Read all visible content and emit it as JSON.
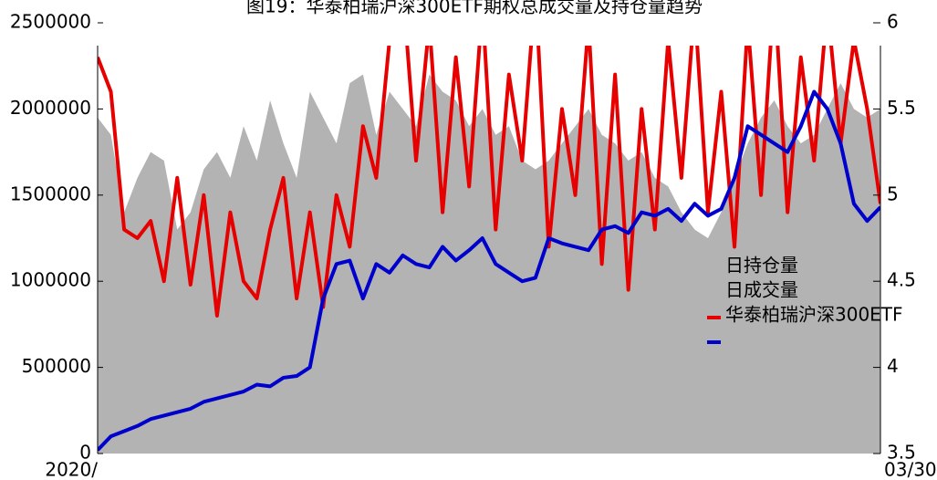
{
  "chart_data": {
    "type": "line",
    "title": "图19：华泰柏瑞沪深300ETF期权总成交量及持仓量趋势",
    "categories": [
      "2020/",
      null,
      null,
      null,
      null,
      null,
      null,
      null,
      null,
      null,
      null,
      null,
      null,
      null,
      null,
      null,
      null,
      null,
      null,
      null,
      null,
      null,
      null,
      null,
      null,
      null,
      null,
      null,
      null,
      null,
      null,
      null,
      null,
      null,
      null,
      null,
      null,
      null,
      null,
      null,
      null,
      null,
      null,
      null,
      null,
      null,
      null,
      null,
      null,
      null,
      null,
      null,
      null,
      null,
      null,
      null,
      null,
      null,
      null,
      "03/30"
    ],
    "series": [
      {
        "name": "日持仓量",
        "color": "#b3b3b3",
        "fill": true,
        "values": [
          1950000,
          1850000,
          1400000,
          1600000,
          1750000,
          1700000,
          1300000,
          1400000,
          1650000,
          1750000,
          1600000,
          1900000,
          1700000,
          2050000,
          1800000,
          1600000,
          2100000,
          1950000,
          1800000,
          2150000,
          2200000,
          1850000,
          2100000,
          2000000,
          1900000,
          2200000,
          2100000,
          2050000,
          1900000,
          2000000,
          1850000,
          1900000,
          1700000,
          1650000,
          1700000,
          1800000,
          1900000,
          2000000,
          1850000,
          1800000,
          1700000,
          1750000,
          1600000,
          1550000,
          1400000,
          1300000,
          1250000,
          1400000,
          1600000,
          1800000,
          1950000,
          2050000,
          1900000,
          1800000,
          1850000,
          2000000,
          2150000,
          2000000,
          1950000,
          2000000
        ]
      },
      {
        "name": "日成交量",
        "color": "#e60000",
        "values": [
          2300000,
          2100000,
          1300000,
          1250000,
          1350000,
          1000000,
          1600000,
          980000,
          1500000,
          800000,
          1400000,
          1000000,
          900000,
          1300000,
          1600000,
          900000,
          1400000,
          850000,
          1500000,
          1200000,
          1900000,
          1600000,
          2400000,
          2700000,
          1700000,
          2500000,
          1400000,
          2300000,
          1550000,
          2600000,
          1300000,
          2200000,
          1700000,
          2700000,
          1200000,
          2000000,
          1500000,
          2500000,
          1100000,
          2200000,
          950000,
          2000000,
          1300000,
          2400000,
          1600000,
          2600000,
          1400000,
          2100000,
          1200000,
          2500000,
          1500000,
          2700000,
          1400000,
          2300000,
          1700000,
          2600000,
          1800000,
          2400000,
          2000000,
          1450000
        ]
      },
      {
        "name": "华泰柏瑞沪深300ETF",
        "color": "#0000cc",
        "axis": "y2",
        "values": [
          3.52,
          3.6,
          3.63,
          3.66,
          3.7,
          3.72,
          3.74,
          3.76,
          3.8,
          3.82,
          3.84,
          3.86,
          3.9,
          3.89,
          3.94,
          3.95,
          4.0,
          4.4,
          4.6,
          4.62,
          4.4,
          4.6,
          4.55,
          4.65,
          4.6,
          4.58,
          4.7,
          4.62,
          4.68,
          4.75,
          4.6,
          4.55,
          4.5,
          4.52,
          4.75,
          4.72,
          4.7,
          4.68,
          4.8,
          4.82,
          4.78,
          4.9,
          4.88,
          4.92,
          4.85,
          4.95,
          4.88,
          4.92,
          5.1,
          5.4,
          5.35,
          5.3,
          5.25,
          5.4,
          5.6,
          5.5,
          5.3,
          4.95,
          4.85,
          4.93
        ]
      }
    ],
    "ylim": [
      0,
      2500000
    ],
    "yticks": [
      0,
      500000,
      1000000,
      1500000,
      2000000,
      2500000
    ],
    "y2lim": [
      3.5,
      6
    ],
    "y2ticks": [
      3.5,
      4,
      4.5,
      5,
      5.5,
      6
    ]
  }
}
